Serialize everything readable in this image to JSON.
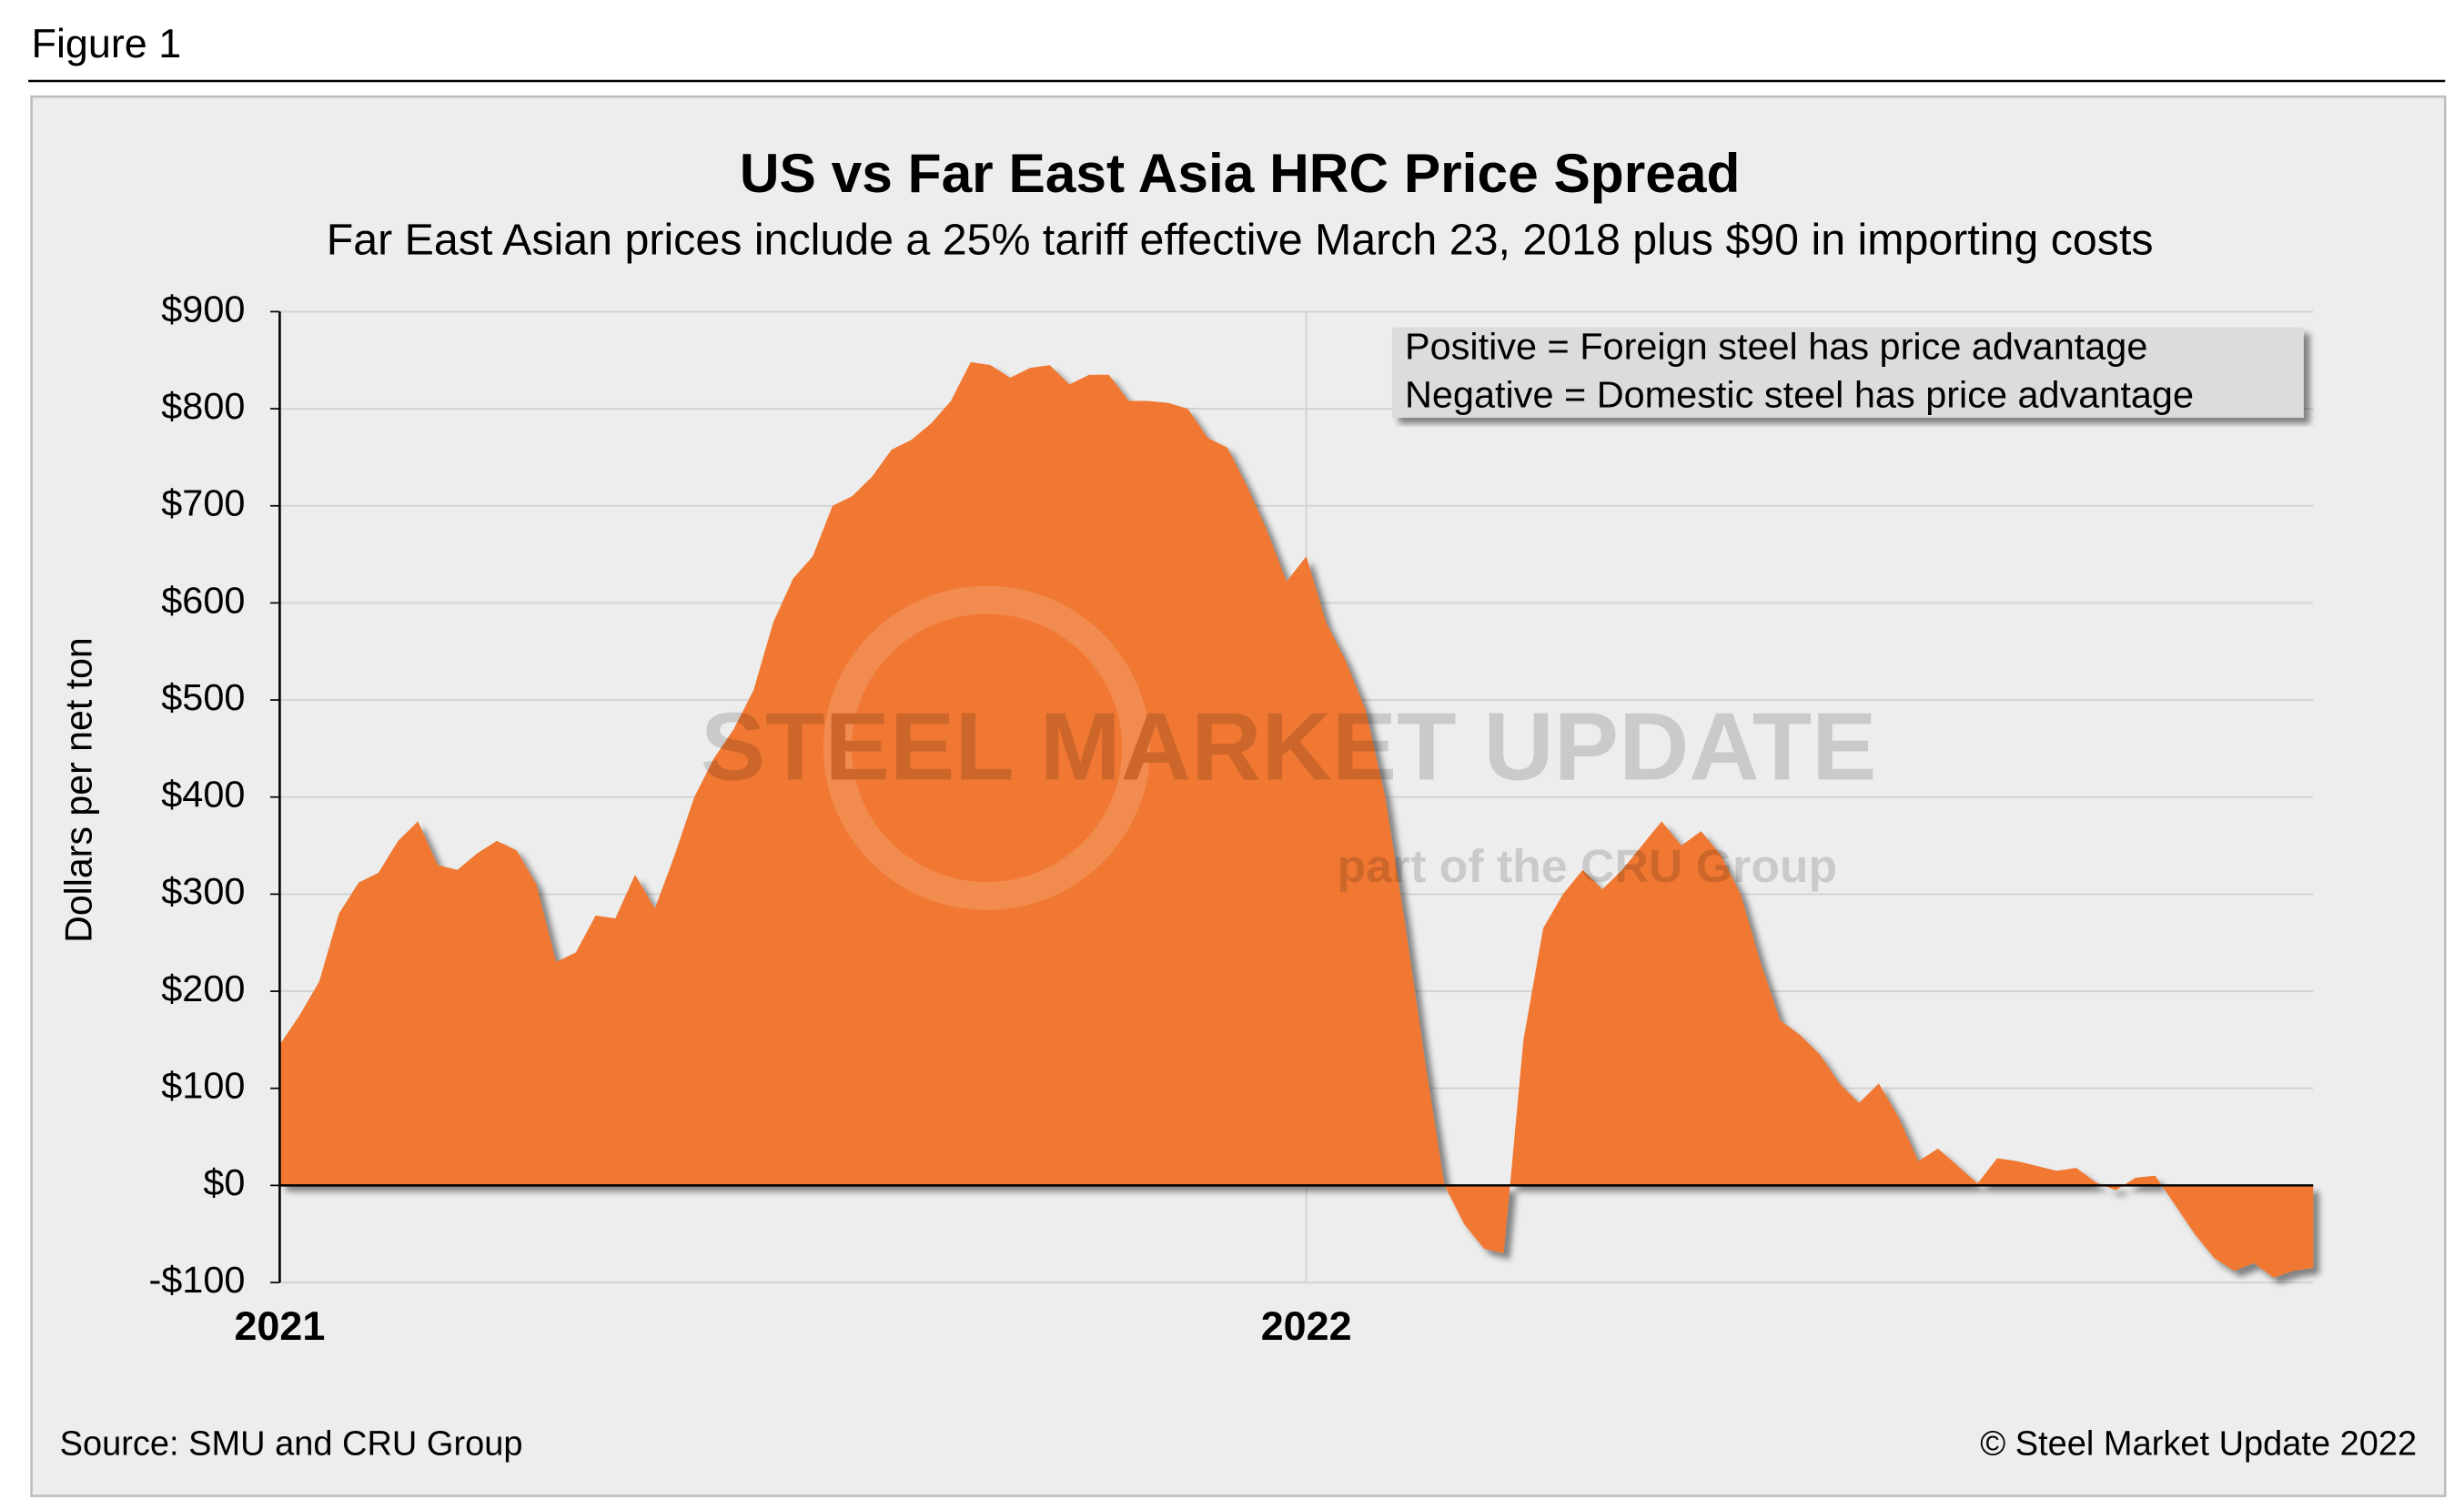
{
  "figure_label": "Figure 1",
  "source": "Source: SMU and CRU Group",
  "copyright": "© Steel Market Update 2022",
  "watermark": [
    "STEEL MARKET UPDATE",
    "part of the CRU Group"
  ],
  "chart_data": {
    "type": "area",
    "title": "US vs Far East Asia HRC Price Spread",
    "subtitle": "Far East Asian prices include a 25% tariff effective March 23, 2018 plus $90 in importing costs",
    "y_label": "Dollars per net ton",
    "annotations": [
      "Positive = Foreign steel has price advantage",
      "Negative = Domestic steel has price advantage"
    ],
    "color": "#f07830",
    "grid": true,
    "categories": [
      "2021",
      null,
      null,
      null,
      null,
      null,
      null,
      null,
      null,
      null,
      null,
      null,
      null,
      null,
      null,
      null,
      null,
      null,
      null,
      null,
      null,
      null,
      null,
      null,
      null,
      null,
      null,
      null,
      null,
      null,
      null,
      null,
      null,
      null,
      null,
      null,
      null,
      null,
      null,
      null,
      null,
      null,
      null,
      null,
      null,
      null,
      null,
      null,
      null,
      null,
      null,
      null,
      "2022",
      null,
      null,
      null,
      null,
      null,
      null,
      null,
      null,
      null,
      null,
      null,
      null,
      null,
      null,
      null,
      null,
      null,
      null,
      null,
      null,
      null,
      null,
      null,
      null,
      null,
      null,
      null,
      null,
      null,
      null,
      null,
      null,
      null,
      null,
      null,
      null,
      null,
      null,
      null,
      null,
      null,
      null,
      null,
      null,
      null,
      null,
      null,
      null,
      null,
      null,
      null
    ],
    "values": [
      145,
      175,
      210,
      280,
      312,
      322,
      355,
      375,
      330,
      325,
      342,
      355,
      345,
      310,
      230,
      240,
      278,
      275,
      320,
      285,
      340,
      400,
      440,
      470,
      510,
      580,
      625,
      648,
      700,
      710,
      730,
      758,
      768,
      785,
      808,
      848,
      845,
      832,
      842,
      845,
      825,
      835,
      835,
      808,
      808,
      806,
      800,
      770,
      760,
      720,
      675,
      622,
      648,
      580,
      540,
      490,
      400,
      270,
      130,
      0,
      -40,
      -65,
      -70,
      150,
      265,
      300,
      325,
      305,
      325,
      350,
      375,
      350,
      365,
      340,
      300,
      230,
      170,
      155,
      135,
      105,
      85,
      105,
      70,
      25,
      38,
      20,
      2,
      28,
      25,
      20,
      15,
      18,
      3,
      -5,
      8,
      10,
      -20,
      -50,
      -75,
      -88,
      -80,
      -95,
      -88,
      -85
    ],
    "ylim": [
      -100,
      900
    ],
    "yticks": [
      {
        "value": -100,
        "label": "-$100"
      },
      {
        "value": 0,
        "label": "$0"
      },
      {
        "value": 100,
        "label": "$100"
      },
      {
        "value": 200,
        "label": "$200"
      },
      {
        "value": 300,
        "label": "$300"
      },
      {
        "value": 400,
        "label": "$400"
      },
      {
        "value": 500,
        "label": "$500"
      },
      {
        "value": 600,
        "label": "$600"
      },
      {
        "value": 700,
        "label": "$700"
      },
      {
        "value": 800,
        "label": "$800"
      },
      {
        "value": 900,
        "label": "$900"
      }
    ]
  }
}
